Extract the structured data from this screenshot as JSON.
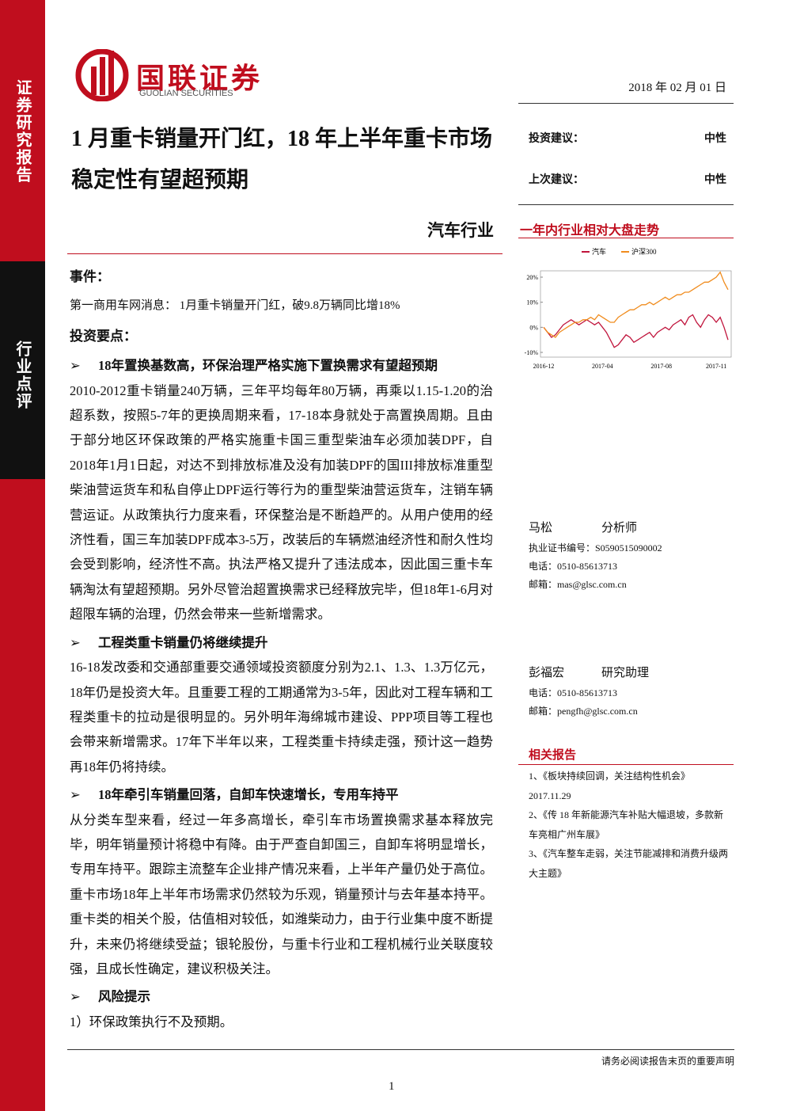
{
  "sidebar": {
    "top": "证券研究报告",
    "middle": "行业点评"
  },
  "header": {
    "logo_cn": "国联证券",
    "logo_en": "GUOLIAN SECURITIES",
    "date": "2018 年 02 月 01 日"
  },
  "title": "1 月重卡销量开门红，18 年上半年重卡市场稳定性有望超预期",
  "industry": "汽车行业",
  "rating": [
    {
      "label": "投资建议：",
      "value": "中性"
    },
    {
      "label": "上次建议：",
      "value": "中性"
    }
  ],
  "chart": {
    "type": "line",
    "title": "一年内行业相对大盘走势",
    "categories": [
      "2016-12",
      null,
      null,
      null,
      null,
      null,
      null,
      null,
      null,
      null,
      null,
      null,
      null,
      null,
      null,
      "2017-04",
      null,
      null,
      null,
      null,
      null,
      null,
      null,
      null,
      null,
      null,
      null,
      null,
      null,
      null,
      "2017-08",
      null,
      null,
      null,
      null,
      null,
      null,
      null,
      null,
      null,
      null,
      null,
      null,
      null,
      "2017-11",
      null,
      null,
      null
    ],
    "series": [
      {
        "name": "汽车",
        "color": "#c0143c",
        "values": [
          0,
          -2,
          -4,
          -3,
          -1,
          1,
          2,
          3,
          2,
          1,
          2,
          3,
          2,
          1,
          2,
          0,
          -2,
          -5,
          -8,
          -7,
          -5,
          -3,
          -4,
          -6,
          -5,
          -4,
          -3,
          -2,
          -4,
          -2,
          -1,
          0,
          -1,
          1,
          2,
          3,
          1,
          4,
          5,
          2,
          0,
          3,
          5,
          4,
          2,
          4,
          0,
          -5
        ]
      },
      {
        "name": "沪深300",
        "color": "#f08c1e",
        "values": [
          0,
          -2,
          -3,
          -4,
          -2,
          -1,
          0,
          1,
          2,
          2,
          3,
          3,
          4,
          3,
          5,
          4,
          3,
          2,
          2,
          4,
          5,
          6,
          7,
          7,
          8,
          9,
          9,
          10,
          9,
          10,
          11,
          12,
          11,
          12,
          13,
          13,
          14,
          14,
          15,
          16,
          17,
          18,
          18,
          19,
          20,
          22,
          18,
          15
        ]
      }
    ],
    "ylim": [
      -10,
      20
    ],
    "yticks": [
      {
        "value": 20,
        "label": "20%"
      },
      {
        "value": 10,
        "label": "10%"
      },
      {
        "value": 0,
        "label": "0%"
      },
      {
        "value": -10,
        "label": "-10%"
      }
    ]
  },
  "analysts": [
    {
      "name": "马松",
      "role": "分析师",
      "lines": [
        "执业证书编号：S0590515090002",
        "电话：0510-85613713",
        "邮箱：mas@glsc.com.cn"
      ]
    },
    {
      "name": "彭福宏",
      "role": "研究助理",
      "lines": [
        "电话：0510-85613713",
        "邮箱：pengfh@glsc.com.cn"
      ]
    }
  ],
  "related": {
    "title": "相关报告",
    "items": [
      "1、《板块持续回调，关注结构性机会》 2017.11.29",
      "2、《传 18 年新能源汽车补贴大幅退坡，多款新车亮相广州车展》",
      "3、《汽车整车走弱，关注节能减排和消费升级两大主题》"
    ]
  },
  "body": {
    "event_heading": "事件：",
    "event_text": "第一商用车网消息：  1月重卡销量开门红，破9.8万辆同比增18%",
    "points_heading": "投资要点：",
    "sections": [
      {
        "heading": "18年置换基数高，环保治理严格实施下置换需求有望超预期",
        "text": "2010-2012重卡销量240万辆，三年平均每年80万辆，再乘以1.15-1.20的治超系数，按照5-7年的更换周期来看，17-18本身就处于高置换周期。且由于部分地区环保政策的严格实施重卡国三重型柴油车必须加装DPF，自2018年1月1日起，对达不到排放标准及没有加装DPF的国III排放标准重型柴油营运货车和私自停止DPF运行等行为的重型柴油营运货车，注销车辆营运证。从政策执行力度来看，环保整治是不断趋严的。从用户使用的经济性看，国三车加装DPF成本3-5万，改装后的车辆燃油经济性和耐久性均会受到影响，经济性不高。执法严格又提升了违法成本，因此国三重卡车辆淘汰有望超预期。另外尽管治超置换需求已经释放完毕，但18年1-6月对超限车辆的治理，仍然会带来一些新增需求。"
      },
      {
        "heading": "工程类重卡销量仍将继续提升",
        "text": "16-18发改委和交通部重要交通领域投资额度分别为2.1、1.3、1.3万亿元，18年仍是投资大年。且重要工程的工期通常为3-5年，因此对工程车辆和工程类重卡的拉动是很明显的。另外明年海绵城市建设、PPP项目等工程也会带来新增需求。17年下半年以来，工程类重卡持续走强，预计这一趋势再18年仍将持续。"
      },
      {
        "heading": "18年牵引车销量回落，自卸车快速增长，专用车持平",
        "text": "从分类车型来看，经过一年多高增长，牵引车市场置换需求基本释放完毕，明年销量预计将稳中有降。由于严查自卸国三，自卸车将明显增长，专用车持平。跟踪主流整车企业排产情况来看，上半年产量仍处于高位。重卡市场18年上半年市场需求仍然较为乐观，销量预计与去年基本持平。重卡类的相关个股，估值相对较低，如潍柴动力，由于行业集中度不断提升，未来仍将继续受益；银轮股份，与重卡行业和工程机械行业关联度较强，且成长性确定，建议积极关注。"
      },
      {
        "heading": "风险提示",
        "text": "1）环保政策执行不及预期。"
      }
    ]
  },
  "footer": {
    "disclaimer": "请务必阅读报告末页的重要声明",
    "page": "1"
  }
}
